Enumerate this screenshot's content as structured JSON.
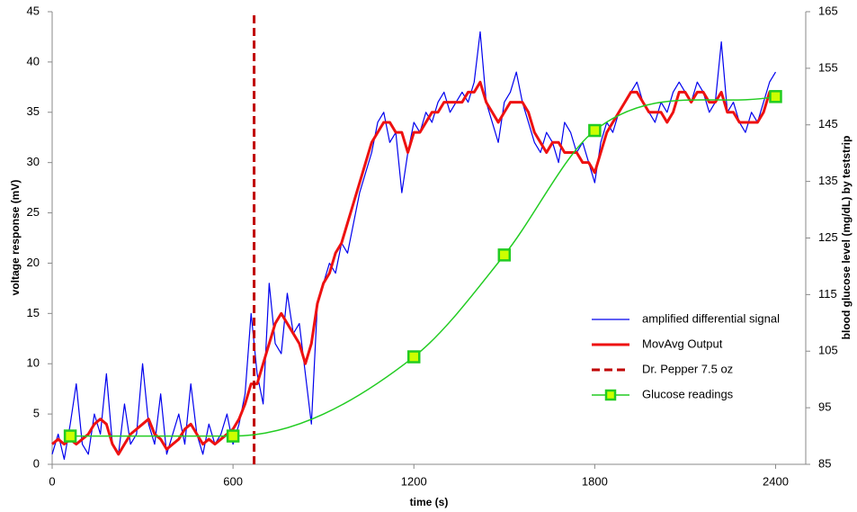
{
  "chart_data": {
    "type": "line",
    "x_label": "time (s)",
    "y_label": "voltage response (mV)",
    "y2_label": "blood glucose level (mg/dL) by teststrip",
    "xlim": [
      0,
      2500
    ],
    "xticks": [
      0,
      600,
      1200,
      1800,
      2400
    ],
    "ylim": [
      0,
      45
    ],
    "yticks": [
      0,
      5,
      10,
      15,
      20,
      25,
      30,
      35,
      40,
      45
    ],
    "y2lim": [
      85,
      165
    ],
    "y2ticks": [
      85,
      95,
      105,
      115,
      125,
      135,
      145,
      155,
      165
    ],
    "grid": false,
    "legend": "right",
    "x": [
      0,
      20,
      40,
      60,
      80,
      100,
      120,
      140,
      160,
      180,
      200,
      220,
      240,
      260,
      280,
      300,
      320,
      340,
      360,
      380,
      400,
      420,
      440,
      460,
      480,
      500,
      520,
      540,
      560,
      580,
      600,
      620,
      640,
      660,
      680,
      700,
      720,
      740,
      760,
      780,
      800,
      820,
      840,
      860,
      880,
      900,
      920,
      940,
      960,
      980,
      1000,
      1020,
      1040,
      1060,
      1080,
      1100,
      1120,
      1140,
      1160,
      1180,
      1200,
      1220,
      1240,
      1260,
      1280,
      1300,
      1320,
      1340,
      1360,
      1380,
      1400,
      1420,
      1440,
      1460,
      1480,
      1500,
      1520,
      1540,
      1560,
      1580,
      1600,
      1620,
      1640,
      1660,
      1680,
      1700,
      1720,
      1740,
      1760,
      1780,
      1800,
      1820,
      1840,
      1860,
      1880,
      1900,
      1920,
      1940,
      1960,
      1980,
      2000,
      2020,
      2040,
      2060,
      2080,
      2100,
      2120,
      2140,
      2160,
      2180,
      2200,
      2220,
      2240,
      2260,
      2280,
      2300,
      2320,
      2340,
      2360,
      2380,
      2400
    ],
    "series": [
      {
        "name": "amplified differential signal",
        "color": "#0000ee",
        "width": 1.2,
        "values": [
          1,
          3,
          0.5,
          4,
          8,
          2,
          1,
          5,
          3,
          9,
          2,
          1,
          6,
          2,
          3,
          10,
          4,
          2,
          7,
          1,
          3,
          5,
          2,
          8,
          3,
          1,
          4,
          2,
          3,
          5,
          2,
          4,
          7,
          15,
          9,
          6,
          18,
          12,
          11,
          17,
          13,
          14,
          9,
          4,
          16,
          18,
          20,
          19,
          22,
          21,
          24,
          27,
          29,
          31,
          34,
          35,
          32,
          33,
          27,
          31,
          34,
          33,
          35,
          34,
          36,
          37,
          35,
          36,
          37,
          36,
          38,
          43,
          36,
          34,
          32,
          36,
          37,
          39,
          36,
          34,
          32,
          31,
          33,
          32,
          30,
          34,
          33,
          31,
          32,
          30,
          28,
          32,
          34,
          33,
          35,
          36,
          37,
          38,
          36,
          35,
          34,
          36,
          35,
          37,
          38,
          37,
          36,
          38,
          37,
          35,
          36,
          42,
          35,
          36,
          34,
          33,
          35,
          34,
          36,
          38,
          39
        ]
      },
      {
        "name": "MovAvg Output",
        "color": "#ee1111",
        "width": 3,
        "values": [
          2,
          2.5,
          2,
          2.5,
          2,
          2.5,
          3,
          4,
          4.5,
          4,
          2,
          1,
          2,
          3,
          3.5,
          4,
          4.5,
          3,
          2.5,
          1.5,
          2,
          2.5,
          3.5,
          4,
          3,
          2,
          2.5,
          2,
          2.5,
          3,
          3.5,
          4.5,
          6,
          8,
          8,
          10,
          12,
          14,
          15,
          14,
          13,
          12,
          10,
          12,
          16,
          18,
          19,
          21,
          22,
          24,
          26,
          28,
          30,
          32,
          33,
          34,
          34,
          33,
          33,
          31,
          33,
          33,
          34,
          35,
          35,
          36,
          36,
          36,
          36,
          37,
          37,
          38,
          36,
          35,
          34,
          35,
          36,
          36,
          36,
          35,
          33,
          32,
          31,
          32,
          32,
          31,
          31,
          31,
          30,
          30,
          29,
          31,
          33,
          34,
          35,
          36,
          37,
          37,
          36,
          35,
          35,
          35,
          34,
          35,
          37,
          37,
          36,
          37,
          37,
          36,
          36,
          37,
          35,
          35,
          34,
          34,
          34,
          34,
          35,
          37,
          37
        ]
      },
      {
        "name": "Dr. Pepper 7.5 oz",
        "color": "#c00000",
        "dashed": true,
        "width": 3,
        "x": [
          670,
          670
        ],
        "values": [
          0,
          45
        ]
      },
      {
        "name": "Glucose readings",
        "color": "#22cc22",
        "marker_fill": "#ccff00",
        "axis": "y2",
        "smooth": true,
        "marker": "square",
        "x": [
          60,
          600,
          1200,
          1500,
          1800,
          2400
        ],
        "values": [
          90,
          90,
          104,
          122,
          144,
          150
        ]
      }
    ]
  }
}
